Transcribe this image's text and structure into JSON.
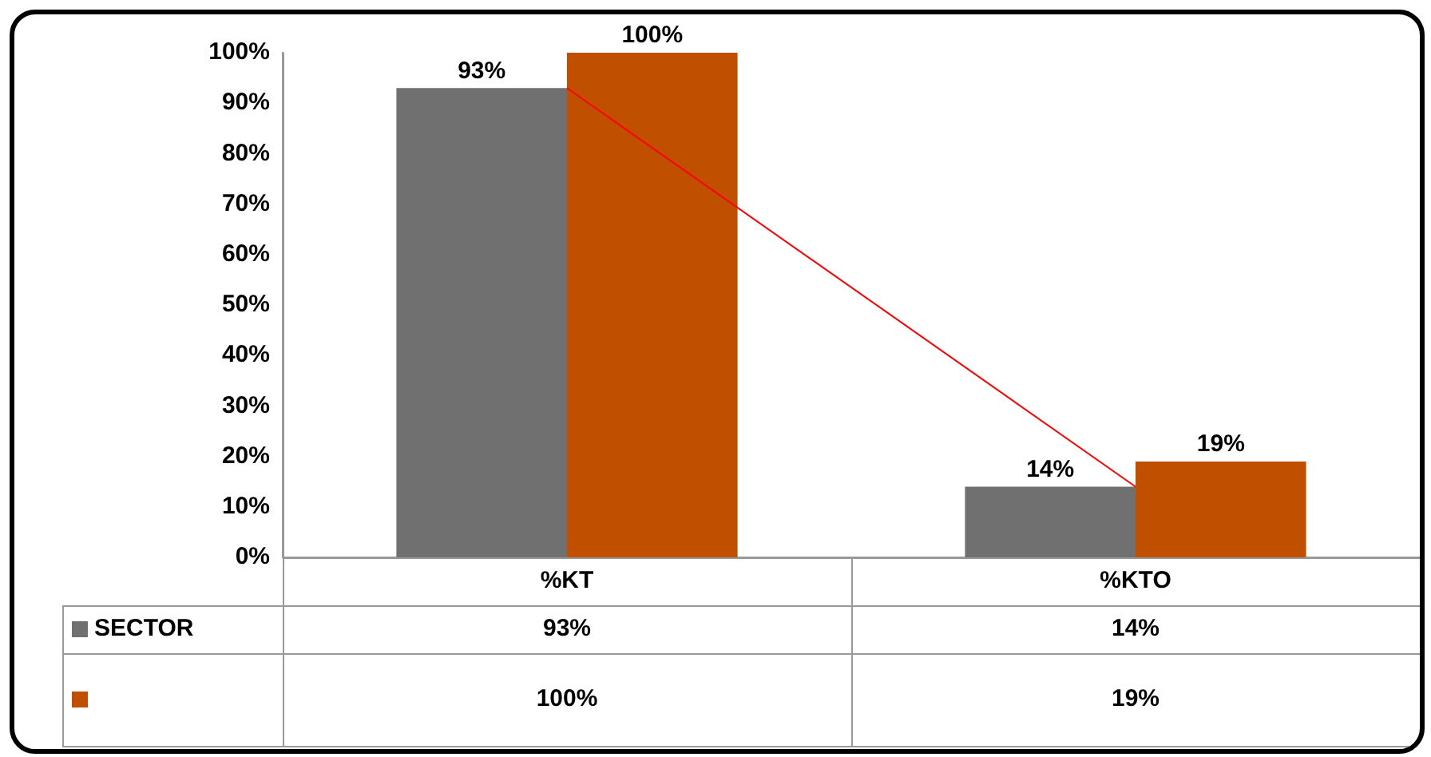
{
  "chart_data": {
    "type": "bar",
    "categories": [
      "%KT",
      "%KTO"
    ],
    "series": [
      {
        "name": "SECTOR",
        "color": "#707070",
        "values": [
          93,
          14
        ],
        "value_labels": [
          "93%",
          "14%"
        ]
      },
      {
        "color": "#c04f00",
        "values": [
          100,
          19
        ],
        "value_labels": [
          "100%",
          "19%"
        ]
      },
      {
        "type": "line",
        "color": "#ff0000",
        "values": [
          93,
          14
        ],
        "marker": "none"
      }
    ],
    "ylim": [
      0,
      100
    ],
    "yticks": [
      {
        "value": 0,
        "label": "0%"
      },
      {
        "value": 10,
        "label": "10%"
      },
      {
        "value": 20,
        "label": "20%"
      },
      {
        "value": 30,
        "label": "30%"
      },
      {
        "value": 40,
        "label": "40%"
      },
      {
        "value": 50,
        "label": "50%"
      },
      {
        "value": 60,
        "label": "60%"
      },
      {
        "value": 70,
        "label": "70%"
      },
      {
        "value": 80,
        "label": "80%"
      },
      {
        "value": 90,
        "label": "90%"
      },
      {
        "value": 100,
        "label": "100%"
      }
    ],
    "grid": false,
    "legend": "bottom"
  }
}
